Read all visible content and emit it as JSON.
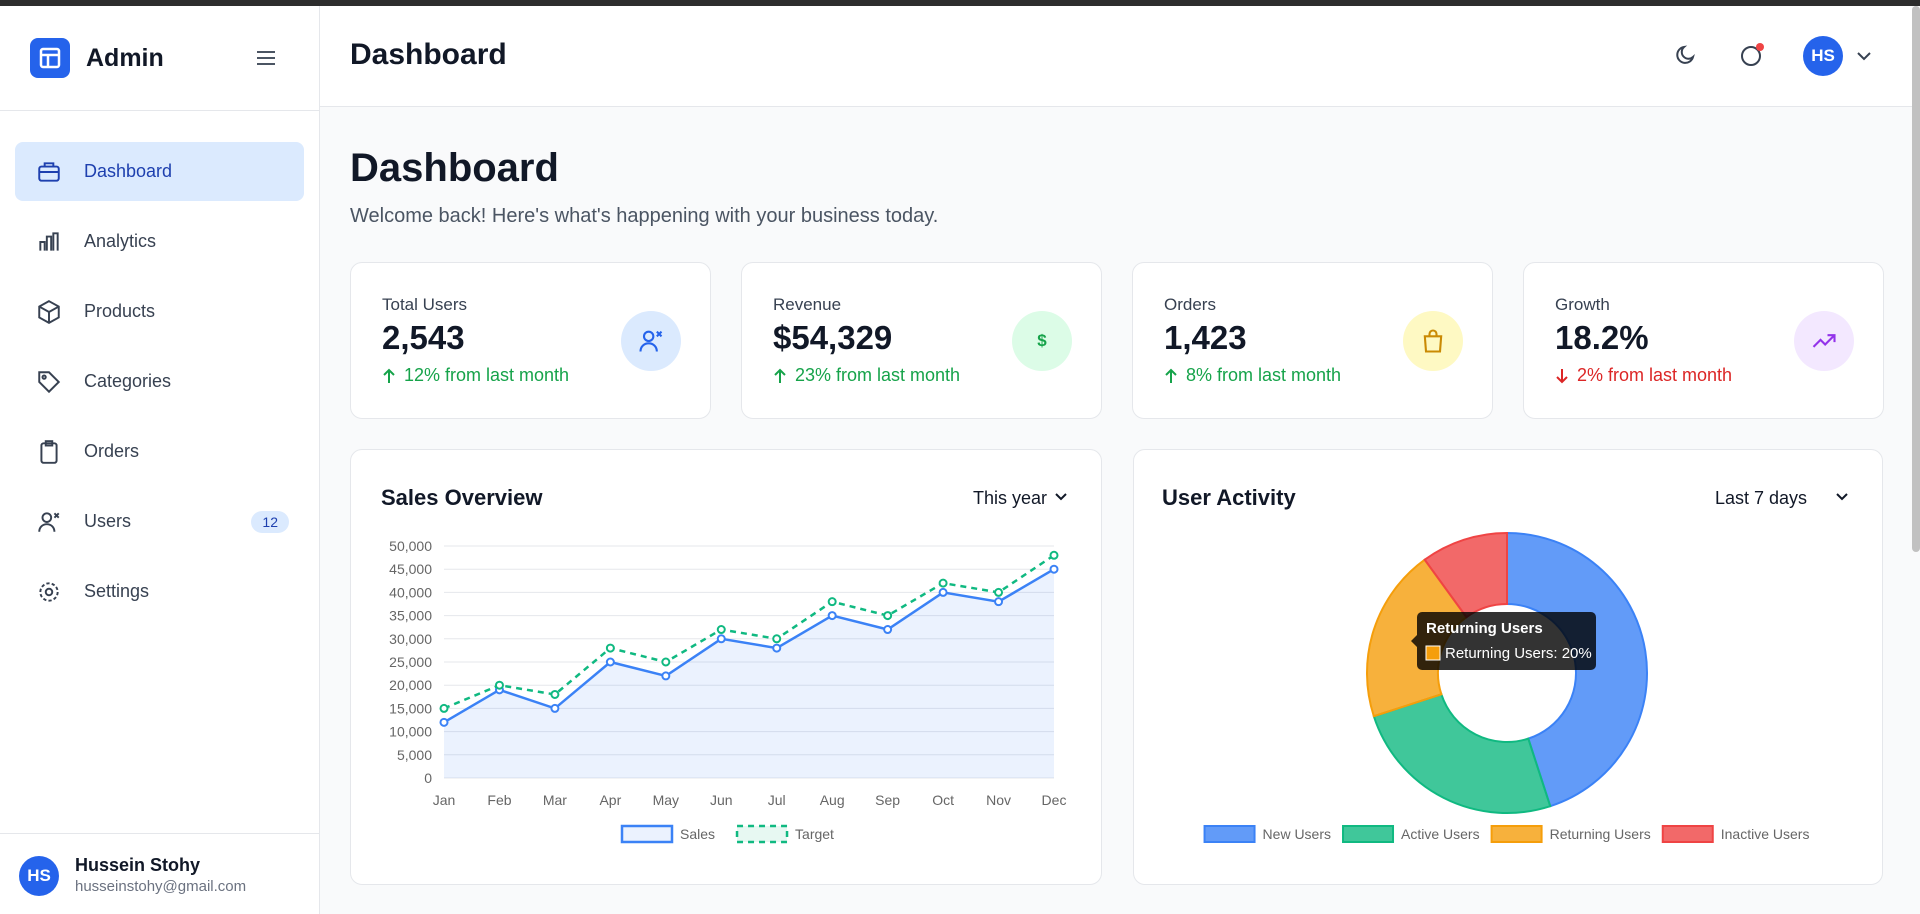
{
  "sidebar": {
    "brand": "Admin",
    "nav": [
      {
        "label": "Dashboard"
      },
      {
        "label": "Analytics"
      },
      {
        "label": "Products"
      },
      {
        "label": "Categories"
      },
      {
        "label": "Orders"
      },
      {
        "label": "Users",
        "badge": "12"
      },
      {
        "label": "Settings"
      }
    ],
    "user": {
      "initials": "HS",
      "name": "Hussein Stohy",
      "email": "husseinstohy@gmail.com"
    }
  },
  "header": {
    "title": "Dashboard",
    "avatar": "HS"
  },
  "page": {
    "title": "Dashboard",
    "subtitle": "Welcome back! Here's what's happening with your business today."
  },
  "stats": [
    {
      "label": "Total Users",
      "value": "2,543",
      "change": "12% from last month",
      "trend": "up"
    },
    {
      "label": "Revenue",
      "value": "$54,329",
      "change": "23% from last month",
      "trend": "up",
      "icon": "$"
    },
    {
      "label": "Orders",
      "value": "1,423",
      "change": "8% from last month",
      "trend": "up"
    },
    {
      "label": "Growth",
      "value": "18.2%",
      "change": "2% from last month",
      "trend": "down"
    }
  ],
  "chart_data": [
    {
      "type": "line",
      "title": "Sales Overview",
      "filter": "This year",
      "categories": [
        "Jan",
        "Feb",
        "Mar",
        "Apr",
        "May",
        "Jun",
        "Jul",
        "Aug",
        "Sep",
        "Oct",
        "Nov",
        "Dec"
      ],
      "series": [
        {
          "name": "Sales",
          "color": "#3b82f6",
          "values": [
            12000,
            19000,
            15000,
            25000,
            22000,
            30000,
            28000,
            35000,
            32000,
            40000,
            38000,
            45000
          ]
        },
        {
          "name": "Target",
          "color": "#10b981",
          "dashed": true,
          "values": [
            15000,
            20000,
            18000,
            28000,
            25000,
            32000,
            30000,
            38000,
            35000,
            42000,
            40000,
            48000
          ]
        }
      ],
      "ylim": [
        0,
        50000
      ],
      "yticks": [
        0,
        {
          "value": 5000,
          "label": "5,000"
        },
        {
          "value": 10000,
          "label": "10,000"
        },
        {
          "value": 15000,
          "label": "15,000"
        },
        {
          "value": 20000,
          "label": "20,000"
        },
        {
          "value": 25000,
          "label": "25,000"
        },
        {
          "value": 30000,
          "label": "30,000"
        },
        {
          "value": 35000,
          "label": "35,000"
        },
        {
          "value": 40000,
          "label": "40,000"
        },
        {
          "value": 45000,
          "label": "45,000"
        },
        {
          "value": 50000,
          "label": "50,000"
        }
      ],
      "grid": true
    },
    {
      "type": "doughnut",
      "title": "User Activity",
      "filter": "Last 7 days",
      "categories": [
        "New Users",
        "Active Users",
        "Returning Users",
        "Inactive Users"
      ],
      "values": [
        45,
        25,
        20,
        10
      ],
      "colors": [
        "#3b82f6",
        "#10b981",
        "#f59e0b",
        "#ef4444"
      ],
      "tooltip": {
        "title": "Returning Users",
        "label": "Returning Users: 20%"
      }
    }
  ]
}
